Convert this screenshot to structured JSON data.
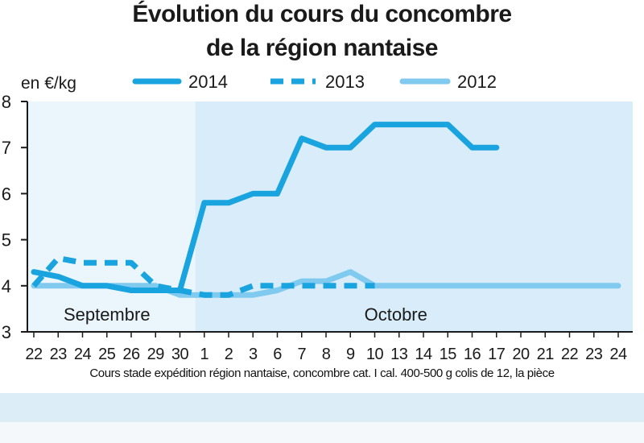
{
  "title_line1": "Évolution du cours du concombre",
  "title_line2": "de la région nantaise",
  "caption": "Cours stade expédition région nantaise, concombre cat. I cal. 400-500 g colis de 12, la pièce",
  "colors": {
    "line_2014": "#19a3df",
    "line_2013": "#19a3df",
    "line_2012": "#7fcaee",
    "bg_september": "#eaf5fc",
    "bg_october": "#d8edf9",
    "axis": "#1a1a1a"
  },
  "chart_data": {
    "type": "line",
    "title": "Évolution du cours du concombre de la région nantaise",
    "ylabel": "en €/kg",
    "xlabel": "",
    "ylim": [
      3,
      8
    ],
    "yticks": [
      3,
      4,
      5,
      6,
      7,
      8
    ],
    "categories": [
      "22",
      "23",
      "24",
      "25",
      "26",
      "29",
      "30",
      "1",
      "2",
      "3",
      "6",
      "7",
      "8",
      "9",
      "10",
      "13",
      "14",
      "15",
      "16",
      "17",
      "20",
      "21",
      "22",
      "23",
      "24"
    ],
    "periods": [
      {
        "label": "Septembre",
        "start_index": 0,
        "end_index": 6
      },
      {
        "label": "Octobre",
        "start_index": 7,
        "end_index": 24
      }
    ],
    "legend_placement": "top",
    "series": [
      {
        "name": "2014",
        "style": "solid-thick",
        "values": [
          4.3,
          4.2,
          4.0,
          4.0,
          3.9,
          3.9,
          3.9,
          5.8,
          5.8,
          6.0,
          6.0,
          7.2,
          7.0,
          7.0,
          7.5,
          7.5,
          7.5,
          7.5,
          7.0,
          7.0,
          null,
          null,
          null,
          null,
          null
        ]
      },
      {
        "name": "2013",
        "style": "dashed",
        "values": [
          4.0,
          4.6,
          4.5,
          4.5,
          4.5,
          4.0,
          3.9,
          3.8,
          3.8,
          4.0,
          4.0,
          4.0,
          4.0,
          4.0,
          4.0,
          null,
          null,
          null,
          null,
          null,
          null,
          null,
          null,
          null,
          null
        ]
      },
      {
        "name": "2012",
        "style": "solid-light",
        "values": [
          4.0,
          4.0,
          4.0,
          4.0,
          4.0,
          4.0,
          3.8,
          3.8,
          3.8,
          3.8,
          3.9,
          4.1,
          4.1,
          4.3,
          4.0,
          4.0,
          4.0,
          4.0,
          4.0,
          4.0,
          4.0,
          4.0,
          4.0,
          4.0,
          4.0
        ]
      }
    ]
  }
}
